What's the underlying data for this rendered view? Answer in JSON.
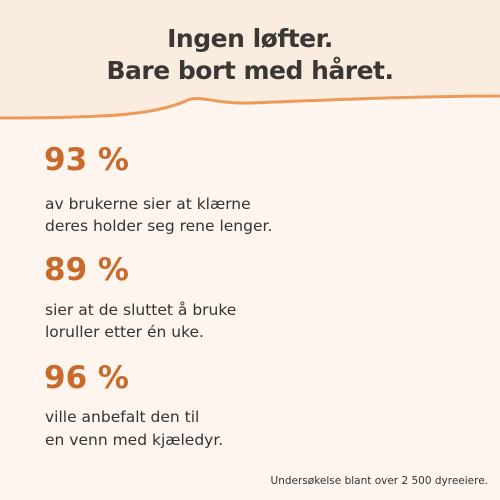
{
  "header": {
    "title_lines": [
      "Ingen løfter.",
      "Bare bort med håret."
    ]
  },
  "stats": [
    {
      "value": "93 %",
      "lines": [
        "av brukerne sier at klærne",
        "deres holder seg rene lenger."
      ]
    },
    {
      "value": "89 %",
      "lines": [
        "sier at de sluttet å bruke",
        "loruller etter én uke."
      ]
    },
    {
      "value": "96 %",
      "lines": [
        "ville anbefalt den til",
        "en venn med kjæledyr."
      ]
    }
  ],
  "footnote": "Undersøkelse blant over 2 500 dyreeiere."
}
